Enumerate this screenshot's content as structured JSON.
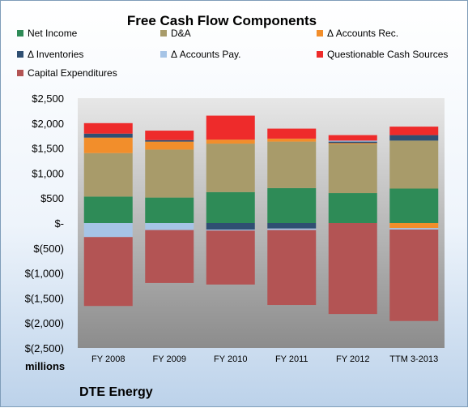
{
  "chart_data": {
    "type": "bar",
    "stacked": true,
    "title": "Free Cash Flow Components",
    "unit_label": "millions",
    "company": "DTE Energy",
    "categories": [
      "FY 2008",
      "FY 2009",
      "FY 2010",
      "FY 2011",
      "FY 2012",
      "TTM 3-2013"
    ],
    "ylim": [
      -2500,
      2500
    ],
    "yticks": [
      2500,
      2000,
      1500,
      1000,
      500,
      0,
      -500,
      -1000,
      -1500,
      -2000,
      -2500
    ],
    "ytick_labels": [
      "$2,500",
      "$2,000",
      "$1,500",
      "$1,000",
      "$500",
      "$-",
      "$(500)",
      "$(1,000)",
      "$(1,500)",
      "$(2,000)",
      "$(2,500)"
    ],
    "legend_position": "top",
    "gridlines": false,
    "series": [
      {
        "name": "Net Income",
        "color": "#2e8b57",
        "values": [
          530,
          510,
          620,
          700,
          600,
          690
        ]
      },
      {
        "name": "D&A",
        "color": "#a89b6a",
        "values": [
          870,
          960,
          970,
          930,
          980,
          960
        ]
      },
      {
        "name": "Δ Accounts Rec.",
        "color": "#f28e2b",
        "values": [
          310,
          160,
          80,
          60,
          20,
          -100
        ]
      },
      {
        "name": "Δ Inventories",
        "color": "#2f4f72",
        "values": [
          80,
          30,
          -130,
          -110,
          30,
          110
        ]
      },
      {
        "name": "Δ Accounts Pay.",
        "color": "#a6c4e6",
        "values": [
          -280,
          -140,
          -20,
          -30,
          20,
          -30
        ]
      },
      {
        "name": "Questionable Cash Sources",
        "color": "#ee2b2b",
        "values": [
          210,
          190,
          480,
          200,
          110,
          170
        ]
      },
      {
        "name": "Capital Expenditures",
        "color": "#b35454",
        "values": [
          -1380,
          -1060,
          -1080,
          -1500,
          -1820,
          -1830
        ]
      }
    ]
  }
}
